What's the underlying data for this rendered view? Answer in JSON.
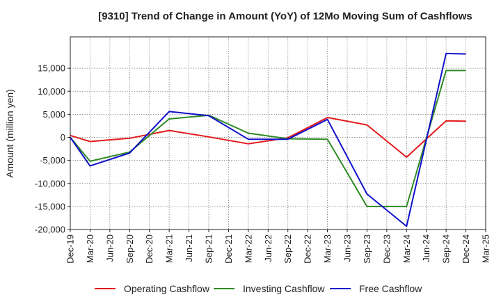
{
  "chart_data": {
    "type": "line",
    "title": "[9310]  Trend of Change in Amount (YoY) of 12Mo Moving Sum of Cashflows",
    "xlabel": "",
    "ylabel": "Amount (million yen)",
    "ylim": [
      -20000,
      20000
    ],
    "yticks": [
      -20000,
      -15000,
      -10000,
      -5000,
      0,
      5000,
      10000,
      15000
    ],
    "ytick_labels": [
      "-20,000",
      "-15,000",
      "-10,000",
      "-5,000",
      "0",
      "5,000",
      "10,000",
      "15,000"
    ],
    "grid": true,
    "legend_position": "bottom",
    "categories": [
      "Dec-19",
      "Mar-20",
      "Jun-20",
      "Sep-20",
      "Dec-20",
      "Mar-21",
      "Jun-21",
      "Sep-21",
      "Dec-21",
      "Mar-22",
      "Jun-22",
      "Sep-22",
      "Dec-22",
      "Mar-23",
      "Jun-23",
      "Sep-23",
      "Dec-23",
      "Mar-24",
      "Jun-24",
      "Sep-24",
      "Dec-24",
      "Mar-25"
    ],
    "series": [
      {
        "name": "Operating Cashflow",
        "color": "#e31a1c",
        "values": [
          400,
          -900,
          null,
          -200,
          null,
          1500,
          null,
          100,
          null,
          -1400,
          null,
          -100,
          null,
          4300,
          null,
          2700,
          null,
          -4300,
          null,
          3600,
          3500,
          null
        ]
      },
      {
        "name": "Investing Cashflow",
        "color": "#2e8b23",
        "values": [
          0,
          -5200,
          null,
          -3200,
          null,
          4000,
          null,
          4800,
          null,
          900,
          null,
          -300,
          null,
          -400,
          null,
          -15000,
          null,
          -15000,
          null,
          14500,
          14500,
          null
        ]
      },
      {
        "name": "Free Cashflow",
        "color": "#1010cc",
        "values": [
          0,
          -6200,
          null,
          -3400,
          null,
          5600,
          null,
          4700,
          null,
          -400,
          null,
          -400,
          null,
          3900,
          null,
          -12300,
          null,
          -19300,
          null,
          18200,
          18100,
          null
        ]
      }
    ]
  }
}
